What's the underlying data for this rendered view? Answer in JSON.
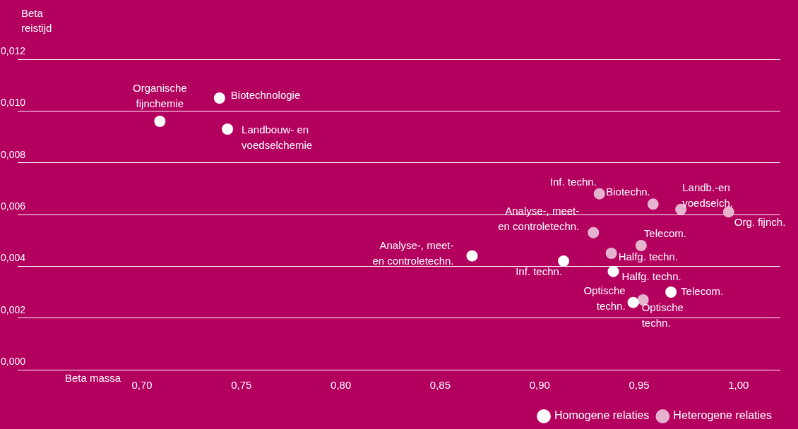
{
  "chart_data": {
    "type": "scatter",
    "xlabel": "Beta massa",
    "ylabel": "Beta reistijd",
    "xlim": [
      0.6375,
      1.021
    ],
    "ylim": [
      0,
      0.012
    ],
    "xticks": [
      {
        "value": 0.7,
        "label": "0,70"
      },
      {
        "value": 0.75,
        "label": "0,75"
      },
      {
        "value": 0.8,
        "label": "0,80"
      },
      {
        "value": 0.85,
        "label": "0,85"
      },
      {
        "value": 0.9,
        "label": "0,90"
      },
      {
        "value": 0.95,
        "label": "0,95"
      },
      {
        "value": 1.0,
        "label": "1,00"
      }
    ],
    "yticks": [
      {
        "value": 0,
        "label": "0,000"
      },
      {
        "value": 0.002,
        "label": "0,002"
      },
      {
        "value": 0.004,
        "label": "0,004"
      },
      {
        "value": 0.006,
        "label": "0,006"
      },
      {
        "value": 0.008,
        "label": "0,008"
      },
      {
        "value": 0.01,
        "label": "0,010"
      },
      {
        "value": 0.012,
        "label": "0,012"
      }
    ],
    "grid": "y",
    "legend": "bottom right",
    "marker": "circle",
    "series": [
      {
        "name": "Homogene relaties",
        "color": "#ffffff",
        "x": [
          0.709,
          0.739,
          0.743,
          0.866,
          0.912,
          0.937,
          0.966,
          0.947
        ],
        "values": [
          0.0096,
          0.0105,
          0.0093,
          0.0044,
          0.0042,
          0.0038,
          0.003,
          0.0026
        ]
      },
      {
        "name": "Heterogene relaties",
        "color": "#e6b3cf",
        "x": [
          0.93,
          0.957,
          0.971,
          0.995,
          0.927,
          0.951,
          0.936,
          0.952
        ],
        "values": [
          0.0068,
          0.0064,
          0.0062,
          0.0061,
          0.0053,
          0.0048,
          0.0045,
          0.0027
        ]
      }
    ],
    "annotations": [
      {
        "text": "Organische fijnchemie",
        "x": 0.709,
        "y": 0.0096
      },
      {
        "text": "Biotechnologie",
        "x": 0.739,
        "y": 0.0105
      },
      {
        "text": "Landbouw- en voedselchemie",
        "x": 0.743,
        "y": 0.0093
      },
      {
        "text": "Analyse-, meet- en controletechn.",
        "x": 0.866,
        "y": 0.0044
      },
      {
        "text": "Inf. techn.",
        "x": 0.912,
        "y": 0.0042
      },
      {
        "text": "Halfg. techn.",
        "x": 0.937,
        "y": 0.0038
      },
      {
        "text": "Telecom.",
        "x": 0.966,
        "y": 0.003
      },
      {
        "text": "Optische techn.",
        "x": 0.947,
        "y": 0.0026
      },
      {
        "text": "Inf. techn.",
        "x": 0.93,
        "y": 0.0068
      },
      {
        "text": "Biotechn.",
        "x": 0.957,
        "y": 0.0064
      },
      {
        "text": "Landb.-en voedselch.",
        "x": 0.971,
        "y": 0.0062
      },
      {
        "text": "Org. fijnch.",
        "x": 0.995,
        "y": 0.0061
      },
      {
        "text": "Analyse-, meet- en controletechn.",
        "x": 0.927,
        "y": 0.0053
      },
      {
        "text": "Telecom.",
        "x": 0.951,
        "y": 0.0048
      },
      {
        "text": "Halfg. techn.",
        "x": 0.936,
        "y": 0.0045
      },
      {
        "text": "Optische techn.",
        "x": 0.952,
        "y": 0.0027
      }
    ]
  }
}
